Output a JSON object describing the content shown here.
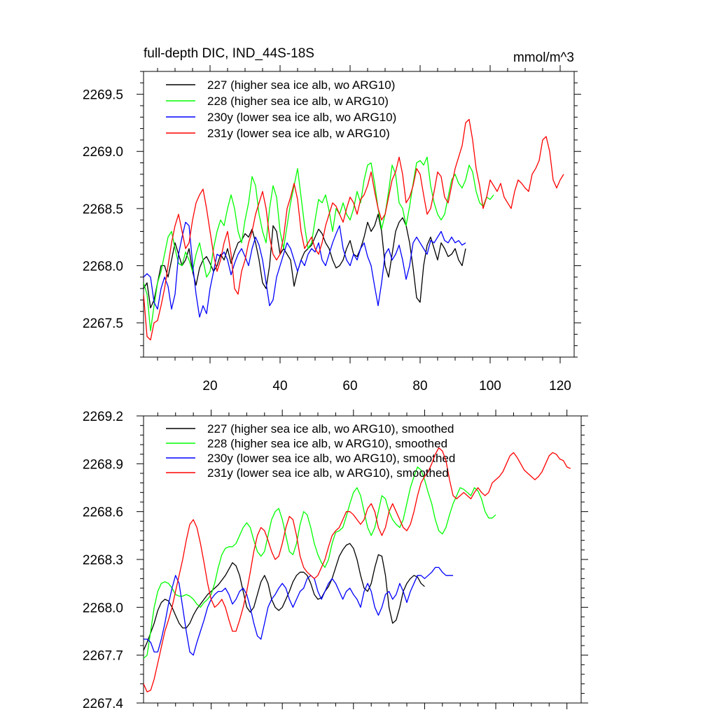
{
  "chart_data": [
    {
      "type": "line",
      "title": "full-depth DIC, IND_44S-18S",
      "units_label": "mmol/m^3",
      "xlabel": "",
      "ylabel": "",
      "xlim": [
        1,
        124
      ],
      "ylim": [
        2267.2,
        2269.7
      ],
      "x_ticks": [
        20,
        40,
        60,
        80,
        100,
        120
      ],
      "x_tick_labels": [
        "20",
        "40",
        "60",
        "80",
        "100",
        "120"
      ],
      "y_ticks": [
        2267.5,
        2268.0,
        2268.5,
        2269.0,
        2269.5
      ],
      "y_tick_labels": [
        "2267.5",
        "2268.0",
        "2268.5",
        "2269.0",
        "2269.5"
      ],
      "legend_position": "top-left",
      "series": [
        {
          "name": "227 (higher sea ice alb, wo ARG10)",
          "color": "#000000",
          "x_start": 1,
          "values": [
            2267.8,
            2267.85,
            2267.63,
            2267.7,
            2267.85,
            2268.0,
            2268.0,
            2267.9,
            2268.05,
            2268.2,
            2268.1,
            2268.0,
            2268.05,
            2268.15,
            2267.95,
            2267.83,
            2267.98,
            2268.05,
            2268.08,
            2268.02,
            2267.95,
            2268.0,
            2268.1,
            2268.05,
            2268.15,
            2268.02,
            2268.12,
            2268.2,
            2268.22,
            2268.28,
            2268.25,
            2268.32,
            2268.2,
            2268.05,
            2267.85,
            2267.8,
            2268.0,
            2268.35,
            2268.3,
            2268.1,
            2268.15,
            2268.1,
            2268.05,
            2267.82,
            2267.95,
            2268.05,
            2268.12,
            2268.15,
            2268.18,
            2268.25,
            2268.32,
            2268.28,
            2268.2,
            2268.15,
            2268.05,
            2267.98,
            2268.0,
            2268.05,
            2268.15,
            2268.22,
            2268.1,
            2268.08,
            2268.15,
            2268.25,
            2268.38,
            2268.3,
            2268.35,
            2268.45,
            2268.3,
            2268.0,
            2267.9,
            2268.1,
            2268.3,
            2268.38,
            2268.42,
            2268.35,
            2268.2,
            2267.98,
            2267.72,
            2267.68,
            2268.0,
            2268.18,
            2268.25,
            2268.15,
            2268.05,
            2268.2,
            2268.15,
            2268.08,
            2268.1,
            2268.15,
            2268.05,
            2268.0,
            2268.15
          ]
        },
        {
          "name": "228 (higher sea ice alb, w ARG10)",
          "color": "#00ff00",
          "x_start": 1,
          "values": [
            2267.85,
            2267.75,
            2267.43,
            2267.65,
            2267.85,
            2267.95,
            2268.1,
            2268.25,
            2268.3,
            2268.15,
            2268.02,
            2268.0,
            2268.12,
            2268.05,
            2267.95,
            2268.1,
            2268.2,
            2268.05,
            2267.9,
            2267.95,
            2268.15,
            2268.3,
            2268.4,
            2268.35,
            2268.5,
            2268.62,
            2268.5,
            2268.3,
            2268.2,
            2268.4,
            2268.55,
            2268.78,
            2268.7,
            2268.45,
            2268.3,
            2268.2,
            2268.5,
            2268.7,
            2268.6,
            2268.3,
            2268.15,
            2268.35,
            2268.55,
            2268.7,
            2268.85,
            2268.6,
            2268.35,
            2268.15,
            2268.2,
            2268.4,
            2268.58,
            2268.55,
            2268.62,
            2268.48,
            2268.3,
            2268.5,
            2268.45,
            2268.55,
            2268.45,
            2268.4,
            2268.5,
            2268.65,
            2268.55,
            2268.75,
            2268.88,
            2268.9,
            2268.72,
            2268.5,
            2268.32,
            2268.45,
            2268.65,
            2268.88,
            2268.8,
            2268.55,
            2268.5,
            2268.35,
            2268.52,
            2268.72,
            2268.9,
            2268.92,
            2268.88,
            2268.95,
            2268.7,
            2268.55,
            2268.45,
            2268.4,
            2268.45,
            2268.6,
            2268.75,
            2268.8,
            2268.72,
            2268.68,
            2268.75,
            2268.88,
            2268.82,
            2268.65,
            2268.55,
            2268.52,
            2268.6,
            2268.58,
            2268.62
          ]
        },
        {
          "name": "230y (lower sea ice alb, wo ARG10)",
          "color": "#0000ff",
          "x_start": 1,
          "values": [
            2267.9,
            2267.93,
            2267.9,
            2267.68,
            2267.62,
            2267.8,
            2267.9,
            2267.82,
            2267.62,
            2267.75,
            2268.1,
            2268.25,
            2268.38,
            2268.35,
            2268.02,
            2267.75,
            2267.55,
            2267.65,
            2267.58,
            2267.8,
            2267.95,
            2268.1,
            2268.08,
            2268.12,
            2268.05,
            2267.92,
            2268.02,
            2268.1,
            2268.15,
            2268.08,
            2268.0,
            2268.15,
            2268.25,
            2268.18,
            2268.05,
            2267.85,
            2267.65,
            2267.7,
            2267.9,
            2268.0,
            2268.1,
            2268.2,
            2268.15,
            2268.05,
            2267.95,
            2268.05,
            2268.0,
            2268.1,
            2268.15,
            2268.12,
            2268.2,
            2268.05,
            2268.0,
            2268.1,
            2268.2,
            2268.28,
            2268.35,
            2268.15,
            2268.05,
            2268.0,
            2268.1,
            2268.05,
            2268.15,
            2268.2,
            2268.08,
            2268.0,
            2267.82,
            2267.65,
            2267.85,
            2268.1,
            2268.15,
            2268.05,
            2268.1,
            2268.18,
            2268.05,
            2267.88,
            2268.0,
            2268.2,
            2268.25,
            2268.2,
            2268.15,
            2268.1,
            2268.22,
            2268.2,
            2268.25,
            2268.3,
            2268.22,
            2268.2,
            2268.25,
            2268.2,
            2268.22,
            2268.18,
            2268.2
          ]
        },
        {
          "name": "231y (lower sea ice alb, w ARG10)",
          "color": "#ff0000",
          "x_start": 1,
          "values": [
            2267.75,
            2267.38,
            2267.35,
            2267.5,
            2267.52,
            2267.65,
            2267.8,
            2268.0,
            2268.2,
            2268.35,
            2268.45,
            2268.3,
            2268.15,
            2268.2,
            2268.4,
            2268.55,
            2268.62,
            2268.67,
            2268.5,
            2268.3,
            2268.1,
            2267.95,
            2268.05,
            2268.2,
            2268.3,
            2268.1,
            2267.8,
            2267.75,
            2267.95,
            2268.05,
            2268.2,
            2268.3,
            2268.45,
            2268.55,
            2268.65,
            2268.5,
            2268.25,
            2268.1,
            2268.05,
            2268.1,
            2268.25,
            2268.5,
            2268.6,
            2268.72,
            2268.58,
            2268.3,
            2268.15,
            2268.2,
            2268.25,
            2268.15,
            2268.1,
            2268.2,
            2268.35,
            2268.45,
            2268.55,
            2268.52,
            2268.45,
            2268.38,
            2268.5,
            2268.6,
            2268.55,
            2268.45,
            2268.58,
            2268.62,
            2268.7,
            2268.82,
            2268.65,
            2268.5,
            2268.4,
            2268.45,
            2268.6,
            2268.75,
            2268.82,
            2268.95,
            2268.8,
            2268.55,
            2268.6,
            2268.7,
            2268.85,
            2268.8,
            2268.62,
            2268.45,
            2268.5,
            2268.65,
            2268.82,
            2268.78,
            2268.6,
            2268.55,
            2268.7,
            2268.85,
            2268.95,
            2269.05,
            2269.25,
            2269.28,
            2269.1,
            2268.85,
            2268.7,
            2268.5,
            2268.6,
            2268.75,
            2268.7,
            2268.65,
            2268.72,
            2268.6,
            2268.55,
            2268.5,
            2268.65,
            2268.75,
            2268.72,
            2268.68,
            2268.65,
            2268.8,
            2268.85,
            2268.92,
            2269.1,
            2269.13,
            2269.0,
            2268.75,
            2268.68,
            2268.75,
            2268.8
          ]
        }
      ]
    },
    {
      "type": "line",
      "title": "",
      "xlabel": "",
      "ylabel": "",
      "xlim": [
        1,
        124
      ],
      "ylim": [
        2267.4,
        2269.2
      ],
      "x_ticks": [
        20,
        40,
        60,
        80,
        100,
        120
      ],
      "x_tick_labels": [],
      "y_ticks": [
        2267.4,
        2267.7,
        2268.0,
        2268.3,
        2268.6,
        2268.9,
        2269.2
      ],
      "y_tick_labels": [
        "2267.4",
        "2267.7",
        "2268.0",
        "2268.3",
        "2268.6",
        "2268.9",
        "2269.2"
      ],
      "legend_position": "top-left",
      "series": [
        {
          "name": "227 (higher sea ice alb, wo ARG10), smoothed",
          "color": "#000000",
          "x_start": 1,
          "values": [
            2267.73,
            2267.78,
            2267.84,
            2267.9,
            2267.98,
            2268.03,
            2268.05,
            2268.04,
            2268.0,
            2267.95,
            2267.9,
            2267.87,
            2267.87,
            2267.9,
            2267.95,
            2267.99,
            2268.02,
            2268.05,
            2268.08,
            2268.1,
            2268.12,
            2268.14,
            2268.17,
            2268.2,
            2268.24,
            2268.28,
            2268.26,
            2268.2,
            2268.1,
            2268.0,
            2267.97,
            2268.0,
            2268.08,
            2268.16,
            2268.2,
            2268.15,
            2268.05,
            2268.0,
            2267.98,
            2268.0,
            2268.05,
            2268.1,
            2268.16,
            2268.2,
            2268.22,
            2268.22,
            2268.2,
            2268.15,
            2268.08,
            2268.05,
            2268.06,
            2268.1,
            2268.13,
            2268.18,
            2268.25,
            2268.32,
            2268.36,
            2268.39,
            2268.4,
            2268.37,
            2268.3,
            2268.2,
            2268.12,
            2268.1,
            2268.15,
            2268.25,
            2268.33,
            2268.32,
            2268.2,
            2268.0,
            2267.9,
            2267.92,
            2268.0,
            2268.1,
            2268.15,
            2268.18,
            2268.2,
            2268.19,
            2268.15,
            2268.13
          ]
        },
        {
          "name": "228 (higher sea ice alb, w ARG10), smoothed",
          "color": "#00ff00",
          "x_start": 1,
          "values": [
            2267.68,
            2267.7,
            2267.85,
            2268.0,
            2268.1,
            2268.15,
            2268.16,
            2268.15,
            2268.12,
            2268.08,
            2268.07,
            2268.07,
            2268.08,
            2268.07,
            2268.05,
            2268.02,
            2268.0,
            2268.03,
            2268.05,
            2268.08,
            2268.15,
            2268.25,
            2268.33,
            2268.37,
            2268.38,
            2268.38,
            2268.4,
            2268.45,
            2268.5,
            2268.53,
            2268.5,
            2268.42,
            2268.35,
            2268.32,
            2268.35,
            2268.45,
            2268.55,
            2268.6,
            2268.62,
            2268.55,
            2268.45,
            2268.35,
            2268.33,
            2268.4,
            2268.52,
            2268.6,
            2268.58,
            2268.5,
            2268.4,
            2268.33,
            2268.28,
            2268.25,
            2268.3,
            2268.4,
            2268.47,
            2268.48,
            2268.5,
            2268.57,
            2268.65,
            2268.72,
            2268.75,
            2268.7,
            2268.6,
            2268.5,
            2268.45,
            2268.5,
            2268.6,
            2268.7,
            2268.68,
            2268.6,
            2268.55,
            2268.52,
            2268.5,
            2268.55,
            2268.65,
            2268.75,
            2268.82,
            2268.88,
            2268.86,
            2268.8,
            2268.72,
            2268.65,
            2268.55,
            2268.48,
            2268.46,
            2268.5,
            2268.58,
            2268.65,
            2268.7,
            2268.75,
            2268.74,
            2268.72,
            2268.7,
            2268.75,
            2268.73,
            2268.68,
            2268.6,
            2268.56,
            2268.56,
            2268.58
          ]
        },
        {
          "name": "230y (lower sea ice alb, wo ARG10), smoothed",
          "color": "#0000ff",
          "x_start": 1,
          "values": [
            2267.8,
            2267.8,
            2267.78,
            2267.72,
            2267.72,
            2267.8,
            2267.9,
            2268.02,
            2268.12,
            2268.2,
            2268.15,
            2268.0,
            2267.85,
            2267.72,
            2267.7,
            2267.78,
            2267.85,
            2267.92,
            2268.0,
            2268.05,
            2268.08,
            2268.1,
            2268.1,
            2268.12,
            2268.08,
            2268.02,
            2268.05,
            2268.1,
            2268.12,
            2268.08,
            2268.0,
            2267.9,
            2267.82,
            2267.8,
            2267.9,
            2268.0,
            2268.05,
            2268.08,
            2268.12,
            2268.15,
            2268.12,
            2268.05,
            2268.0,
            2268.05,
            2268.1,
            2268.12,
            2268.18,
            2268.2,
            2268.18,
            2268.1,
            2268.05,
            2268.1,
            2268.15,
            2268.18,
            2268.15,
            2268.1,
            2268.05,
            2268.1,
            2268.12,
            2268.08,
            2268.05,
            2268.0,
            2268.1,
            2268.15,
            2268.1,
            2268.0,
            2267.95,
            2268.0,
            2268.08,
            2268.1,
            2268.05,
            2268.08,
            2268.15,
            2268.1,
            2268.03,
            2268.1,
            2268.15,
            2268.2,
            2268.2,
            2268.18,
            2268.2,
            2268.22,
            2268.25,
            2268.25,
            2268.22,
            2268.2,
            2268.2,
            2268.2
          ]
        },
        {
          "name": "231y (lower sea ice alb, w ARG10), smoothed",
          "color": "#ff0000",
          "x_start": 1,
          "values": [
            2267.52,
            2267.47,
            2267.48,
            2267.55,
            2267.65,
            2267.75,
            2267.85,
            2267.92,
            2268.0,
            2268.1,
            2268.2,
            2268.3,
            2268.42,
            2268.52,
            2268.55,
            2268.5,
            2268.4,
            2268.28,
            2268.15,
            2268.05,
            2268.0,
            2268.02,
            2268.05,
            2268.0,
            2267.92,
            2267.85,
            2267.85,
            2267.92,
            2268.0,
            2268.1,
            2268.22,
            2268.35,
            2268.45,
            2268.5,
            2268.48,
            2268.42,
            2268.35,
            2268.3,
            2268.32,
            2268.4,
            2268.5,
            2268.57,
            2268.55,
            2268.45,
            2268.32,
            2268.25,
            2268.22,
            2268.2,
            2268.18,
            2268.2,
            2268.25,
            2268.3,
            2268.38,
            2268.45,
            2268.48,
            2268.5,
            2268.55,
            2268.6,
            2268.6,
            2268.58,
            2268.55,
            2268.52,
            2268.55,
            2268.62,
            2268.65,
            2268.6,
            2268.5,
            2268.45,
            2268.5,
            2268.6,
            2268.65,
            2268.6,
            2268.55,
            2268.5,
            2268.48,
            2268.52,
            2268.6,
            2268.7,
            2268.78,
            2268.82,
            2268.85,
            2268.9,
            2268.96,
            2269.0,
            2268.98,
            2268.92,
            2268.8,
            2268.7,
            2268.68,
            2268.7,
            2268.72,
            2268.7,
            2268.68,
            2268.72,
            2268.75,
            2268.72,
            2268.7,
            2268.72,
            2268.78,
            2268.8,
            2268.82,
            2268.85,
            2268.9,
            2268.95,
            2268.97,
            2268.94,
            2268.9,
            2268.86,
            2268.84,
            2268.82,
            2268.8,
            2268.82,
            2268.85,
            2268.9,
            2268.95,
            2268.97,
            2268.96,
            2268.93,
            2268.92,
            2268.88,
            2268.87
          ]
        }
      ]
    }
  ]
}
